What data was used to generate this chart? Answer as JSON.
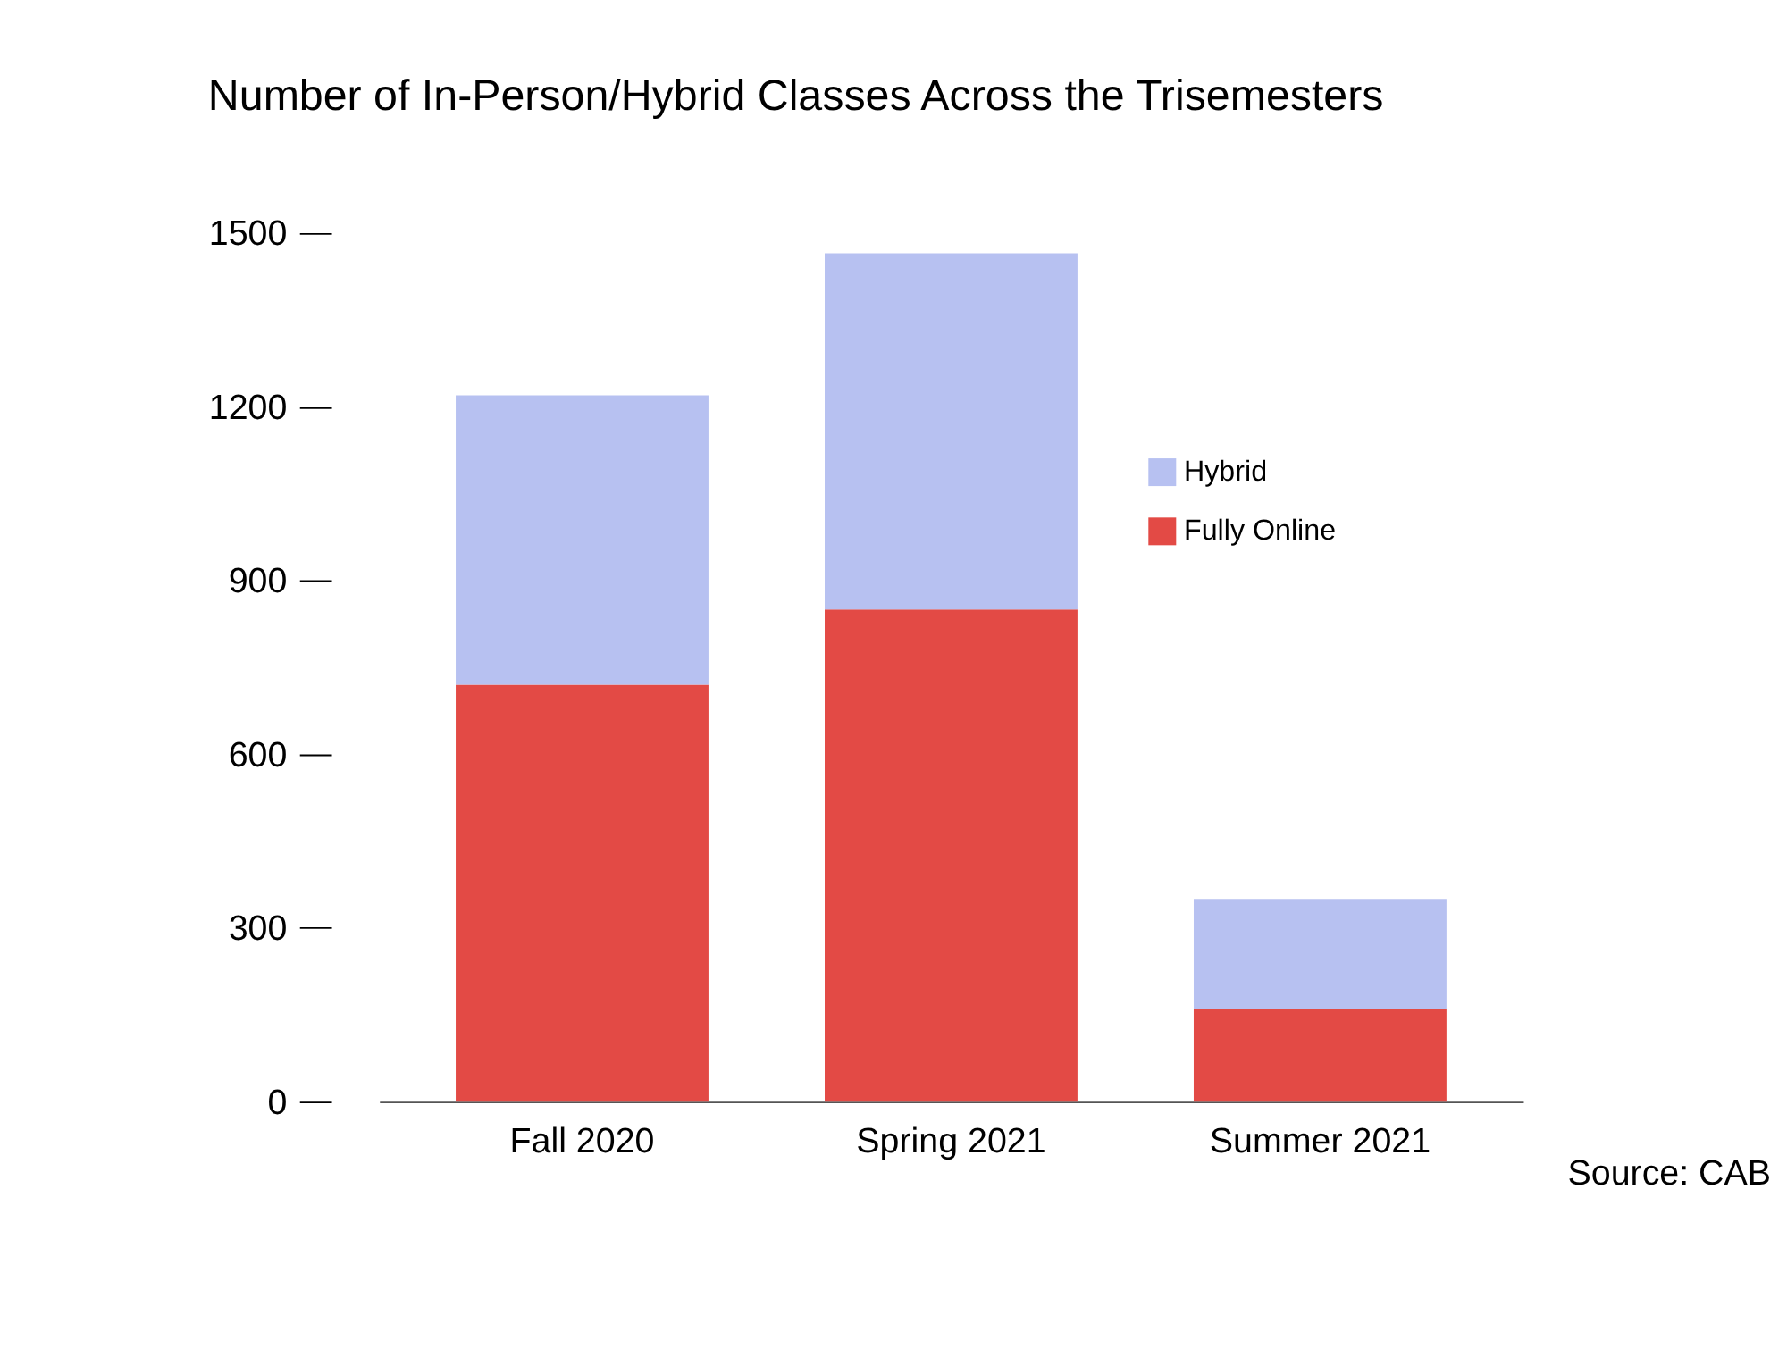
{
  "chart_data": {
    "type": "bar",
    "title": "Number of In-Person/Hybrid Classes Across the Trisemesters",
    "categories": [
      "Fall 2020",
      "Spring 2021",
      "Summer 2021"
    ],
    "stacked": true,
    "series": [
      {
        "name": "Fully Online",
        "color": "#e34a45",
        "values": [
          720,
          850,
          160
        ]
      },
      {
        "name": "Hybrid",
        "color": "#b7c1f1",
        "values": [
          500,
          615,
          190
        ]
      }
    ],
    "ylim": [
      0,
      1500
    ],
    "yticks": [
      0,
      300,
      600,
      900,
      1200,
      1500
    ],
    "grid": false,
    "legend": "right",
    "annotations": [
      "Source: CAB"
    ]
  }
}
